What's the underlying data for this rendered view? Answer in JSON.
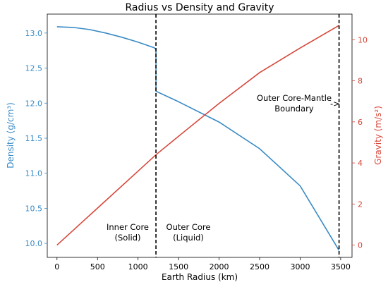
{
  "chart_data": {
    "type": "line",
    "title": "Radius vs Density and Gravity",
    "xlabel": "Earth Radius (km)",
    "ylabel_left": "Density (g/cm³)",
    "ylabel_right": "Gravity (m/s²)",
    "xlim": [
      -120,
      3640
    ],
    "ylim_left": [
      9.8,
      13.27
    ],
    "ylim_right": [
      -0.6,
      11.25
    ],
    "x_ticks": [
      0,
      500,
      1000,
      1500,
      2000,
      2500,
      3000,
      3500
    ],
    "y_left_ticks": [
      10.0,
      10.5,
      11.0,
      11.5,
      12.0,
      12.5,
      13.0
    ],
    "y_right_ticks": [
      0,
      2,
      4,
      6,
      8,
      10
    ],
    "grid": false,
    "colors": {
      "density": "#3a8bc5",
      "gravity": "#d6483b",
      "axis": "#000000"
    },
    "series": [
      {
        "axis": "left",
        "color": "#3a8bc5",
        "x": [
          0,
          200,
          400,
          600,
          800,
          1000,
          1100,
          1200,
          1221,
          1221,
          1500,
          2000,
          2500,
          3000,
          3480
        ],
        "y": [
          13.09,
          13.08,
          13.05,
          13.0,
          12.94,
          12.87,
          12.83,
          12.79,
          12.77,
          12.17,
          12.02,
          11.73,
          11.35,
          10.82,
          9.9
        ]
      },
      {
        "axis": "right",
        "color": "#d6483b",
        "x": [
          0,
          500,
          1000,
          1221,
          1500,
          2000,
          2500,
          3000,
          3480
        ],
        "y": [
          0,
          1.8,
          3.6,
          4.4,
          5.3,
          6.9,
          8.4,
          9.6,
          10.7
        ]
      }
    ],
    "vlines": [
      1221,
      3480
    ],
    "annotations": {
      "inner_core": [
        "Inner Core",
        "(Solid)"
      ],
      "outer_core": [
        "Outer Core",
        "(Liquid)"
      ],
      "boundary": [
        "Outer Core-Mantle",
        "Boundary"
      ],
      "arrow": "->"
    }
  }
}
